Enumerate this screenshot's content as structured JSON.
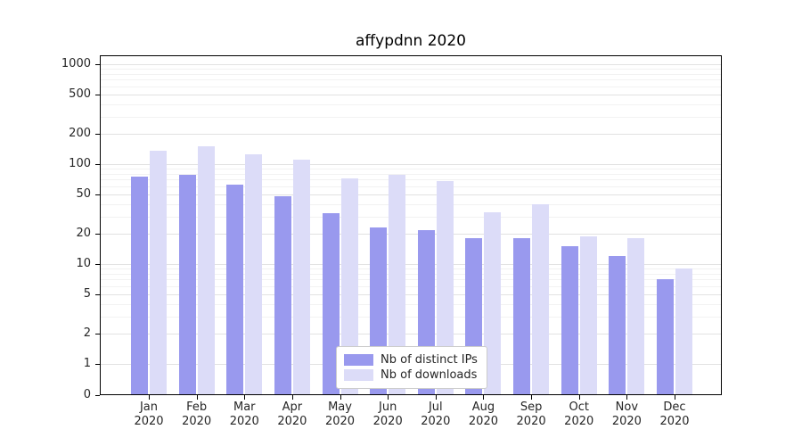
{
  "chart_data": {
    "type": "bar",
    "title": "affypdnn 2020",
    "yscale": "symlog",
    "ylim": [
      0,
      1000
    ],
    "yticks": [
      0,
      1,
      2,
      5,
      10,
      20,
      50,
      100,
      200,
      500,
      1000
    ],
    "grid": true,
    "legend_position": "lower center",
    "categories": [
      "Jan 2020",
      "Feb 2020",
      "Mar 2020",
      "Apr 2020",
      "May 2020",
      "Jun 2020",
      "Jul 2020",
      "Aug 2020",
      "Sep 2020",
      "Oct 2020",
      "Nov 2020",
      "Dec 2020"
    ],
    "series": [
      {
        "name": "Nb of distinct IPs",
        "color": "#9999ee",
        "values": [
          75,
          78,
          62,
          48,
          32,
          23,
          22,
          18,
          18,
          15,
          12,
          7
        ]
      },
      {
        "name": "Nb of downloads",
        "color": "#dcdcf8",
        "values": [
          135,
          150,
          125,
          110,
          72,
          78,
          68,
          33,
          40,
          19,
          18,
          9
        ]
      }
    ]
  }
}
